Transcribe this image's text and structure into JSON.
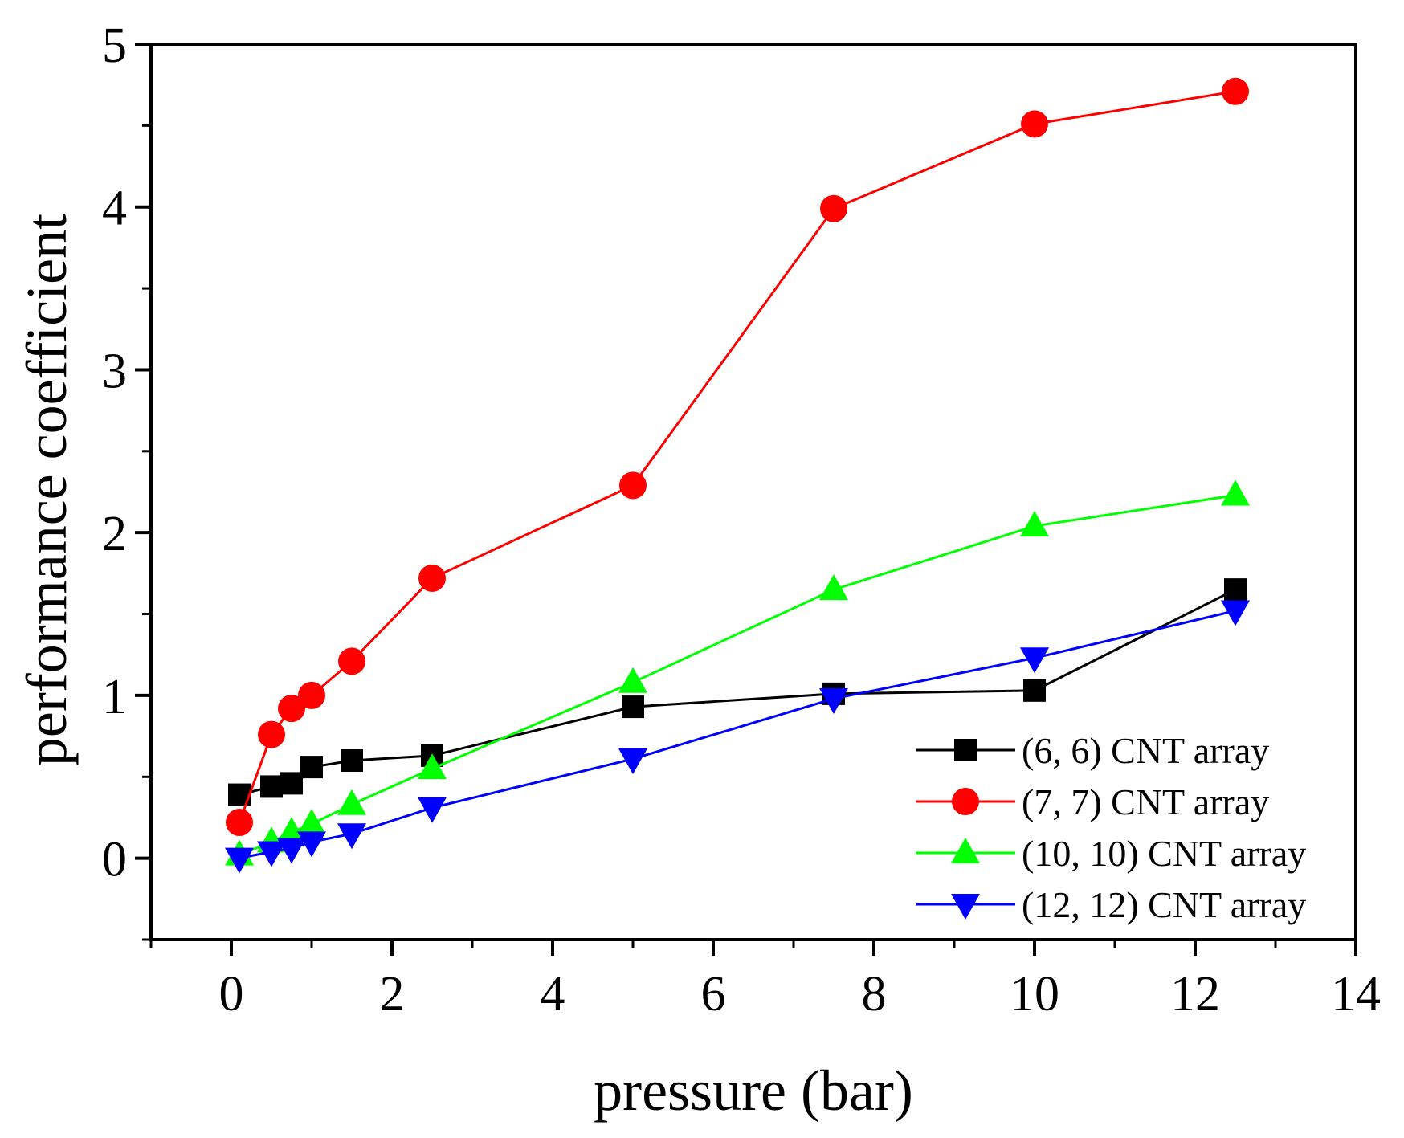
{
  "chart_data": {
    "type": "line",
    "xlabel": "pressure (bar)",
    "ylabel": "performance coefficient",
    "xlim": [
      -1,
      14
    ],
    "ylim": [
      -0.5,
      5
    ],
    "x_ticks": [
      0,
      2,
      4,
      6,
      8,
      10,
      12,
      14
    ],
    "x_tick_labels": [
      "0",
      "2",
      "4",
      "6",
      "8",
      "10",
      "12",
      "14"
    ],
    "y_ticks": [
      0,
      1,
      2,
      3,
      4,
      5
    ],
    "y_tick_labels": [
      "0",
      "1",
      "2",
      "3",
      "4",
      "5"
    ],
    "legend_position": "bottom-right",
    "series": [
      {
        "name": "(6, 6) CNT array",
        "color": "#000000",
        "marker": "square",
        "x": [
          0.1,
          0.5,
          0.75,
          1.0,
          1.5,
          2.5,
          5.0,
          7.5,
          10.0,
          12.5
        ],
        "y": [
          0.39,
          0.44,
          0.46,
          0.56,
          0.6,
          0.63,
          0.93,
          1.01,
          1.03,
          1.65
        ]
      },
      {
        "name": "(7, 7) CNT array",
        "color": "#ff0000",
        "marker": "circle",
        "x": [
          0.1,
          0.5,
          0.75,
          1.0,
          1.5,
          2.5,
          5.0,
          7.5,
          10.0,
          12.5
        ],
        "y": [
          0.22,
          0.76,
          0.92,
          1.0,
          1.21,
          1.72,
          2.29,
          3.99,
          4.51,
          4.71
        ]
      },
      {
        "name": "(10, 10) CNT array",
        "color": "#00ff00",
        "marker": "triangle-up",
        "x": [
          0.1,
          0.5,
          0.75,
          1.0,
          1.5,
          2.5,
          5.0,
          7.5,
          10.0,
          12.5
        ],
        "y": [
          0.02,
          0.1,
          0.16,
          0.21,
          0.33,
          0.55,
          1.08,
          1.65,
          2.04,
          2.23
        ]
      },
      {
        "name": "(12, 12) CNT array",
        "color": "#0000ff",
        "marker": "triangle-down",
        "x": [
          0.1,
          0.5,
          0.75,
          1.0,
          1.5,
          2.5,
          5.0,
          7.5,
          10.0,
          12.5
        ],
        "y": [
          0.0,
          0.04,
          0.06,
          0.1,
          0.15,
          0.31,
          0.61,
          0.98,
          1.23,
          1.52
        ]
      }
    ]
  }
}
